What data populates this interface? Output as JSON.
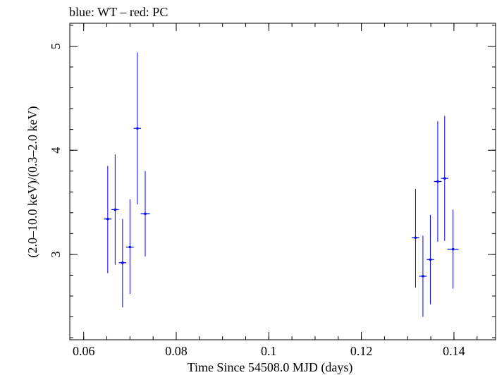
{
  "chart_data": {
    "type": "scatter",
    "title": "blue: WT – red: PC",
    "xlabel": "Time Since 54508.0 MJD (days)",
    "ylabel": "(2.0–10.0 keV)/(0.3–2.0 keV)",
    "xlim": [
      0.057,
      0.149
    ],
    "ylim": [
      2.18,
      5.22
    ],
    "xticks": [
      0.06,
      0.08,
      0.1,
      0.12,
      0.14
    ],
    "xtick_labels": [
      "0.06",
      "0.08",
      "0.1",
      "0.12",
      "0.14"
    ],
    "yticks": [
      3,
      4,
      5
    ],
    "ytick_labels": [
      "3",
      "4",
      "5"
    ],
    "x_minor_step": 0.005,
    "y_minor_step": 0.2,
    "grid": false,
    "series": [
      {
        "color": "#0000ff",
        "points": [
          {
            "x": 0.0652,
            "y": 3.34,
            "xerr": 0.0008,
            "ylo": 2.82,
            "yhi": 3.85
          },
          {
            "x": 0.0668,
            "y": 3.43,
            "xerr": 0.0008,
            "ylo": 2.9,
            "yhi": 3.96
          },
          {
            "x": 0.0684,
            "y": 2.92,
            "xerr": 0.0008,
            "ylo": 2.49,
            "yhi": 3.34
          },
          {
            "x": 0.07,
            "y": 3.07,
            "xerr": 0.0008,
            "ylo": 2.62,
            "yhi": 3.53
          },
          {
            "x": 0.0716,
            "y": 4.21,
            "xerr": 0.0008,
            "ylo": 3.48,
            "yhi": 4.94
          },
          {
            "x": 0.0733,
            "y": 3.39,
            "xerr": 0.001,
            "ylo": 2.98,
            "yhi": 3.8
          },
          {
            "x": 0.1317,
            "y": 3.16,
            "xerr": 0.0008,
            "ylo": 2.68,
            "yhi": 3.63
          },
          {
            "x": 0.1333,
            "y": 2.79,
            "xerr": 0.0008,
            "ylo": 2.4,
            "yhi": 3.18
          },
          {
            "x": 0.1349,
            "y": 2.95,
            "xerr": 0.0008,
            "ylo": 2.52,
            "yhi": 3.38
          },
          {
            "x": 0.1365,
            "y": 3.7,
            "xerr": 0.0008,
            "ylo": 3.12,
            "yhi": 4.28
          },
          {
            "x": 0.138,
            "y": 3.73,
            "xerr": 0.0008,
            "ylo": 3.13,
            "yhi": 4.33
          },
          {
            "x": 0.1398,
            "y": 3.05,
            "xerr": 0.0012,
            "ylo": 2.67,
            "yhi": 3.43
          }
        ]
      }
    ]
  }
}
